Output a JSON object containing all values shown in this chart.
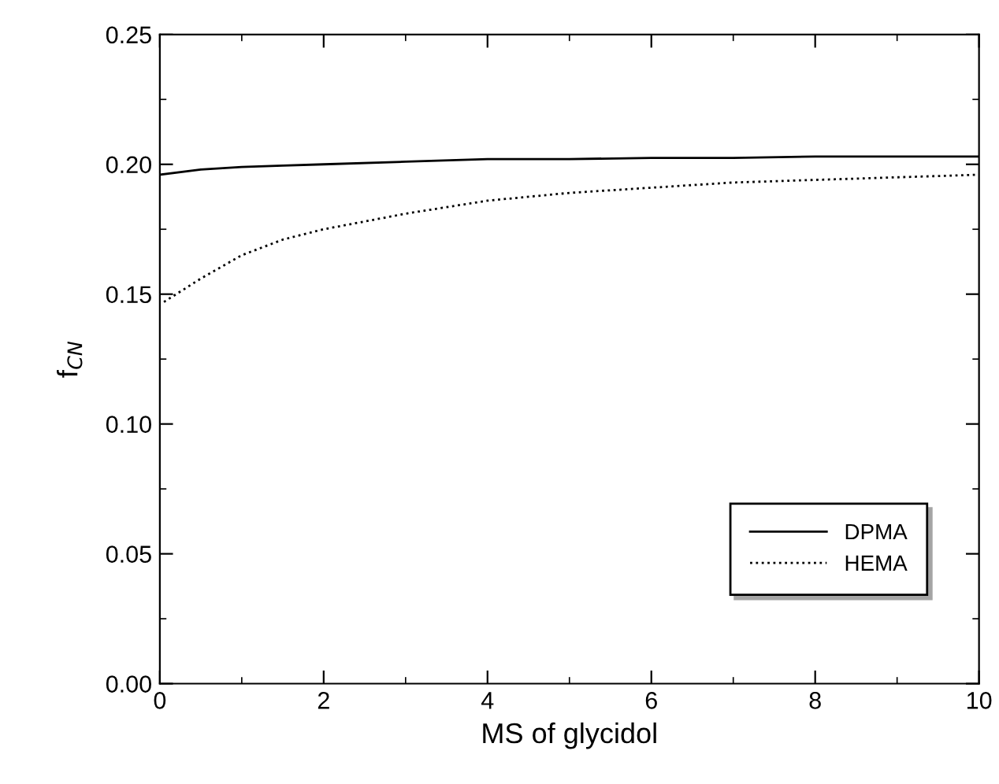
{
  "chart_data": {
    "type": "line",
    "xlabel": "MS of glycidol",
    "ylabel": "f$_{CN}$",
    "xlim": [
      0,
      10
    ],
    "ylim": [
      0,
      0.25
    ],
    "xticks": [
      0,
      2,
      4,
      6,
      8,
      10
    ],
    "yticks": [
      {
        "value": 0,
        "label": "0.00"
      },
      {
        "value": 0.05,
        "label": "0.05"
      },
      {
        "value": 0.1,
        "label": "0.10"
      },
      {
        "value": 0.15,
        "label": "0.15"
      },
      {
        "value": 0.2,
        "label": "0.20"
      },
      {
        "value": 0.25,
        "label": "0.25"
      }
    ],
    "grid": false,
    "legend": "bottom right",
    "marker": "none",
    "series": [
      {
        "name": "DPMA",
        "color": "#000000",
        "line_style": "solid",
        "x": [
          0,
          0.5,
          1,
          1.5,
          2,
          3,
          4,
          5,
          6,
          7,
          8,
          9,
          10
        ],
        "values": [
          0.196,
          0.198,
          0.199,
          0.1995,
          0.2,
          0.201,
          0.202,
          0.202,
          0.2025,
          0.2025,
          0.203,
          0.203,
          0.203
        ]
      },
      {
        "name": "HEMA",
        "color": "#000000",
        "line_style": "dotted",
        "x": [
          0.05,
          0.2,
          0.5,
          1,
          1.5,
          2,
          2.5,
          3,
          4,
          5,
          6,
          7,
          8,
          9,
          10
        ],
        "values": [
          0.147,
          0.15,
          0.156,
          0.165,
          0.171,
          0.175,
          0.178,
          0.181,
          0.186,
          0.189,
          0.191,
          0.193,
          0.194,
          0.195,
          0.196
        ]
      }
    ]
  }
}
